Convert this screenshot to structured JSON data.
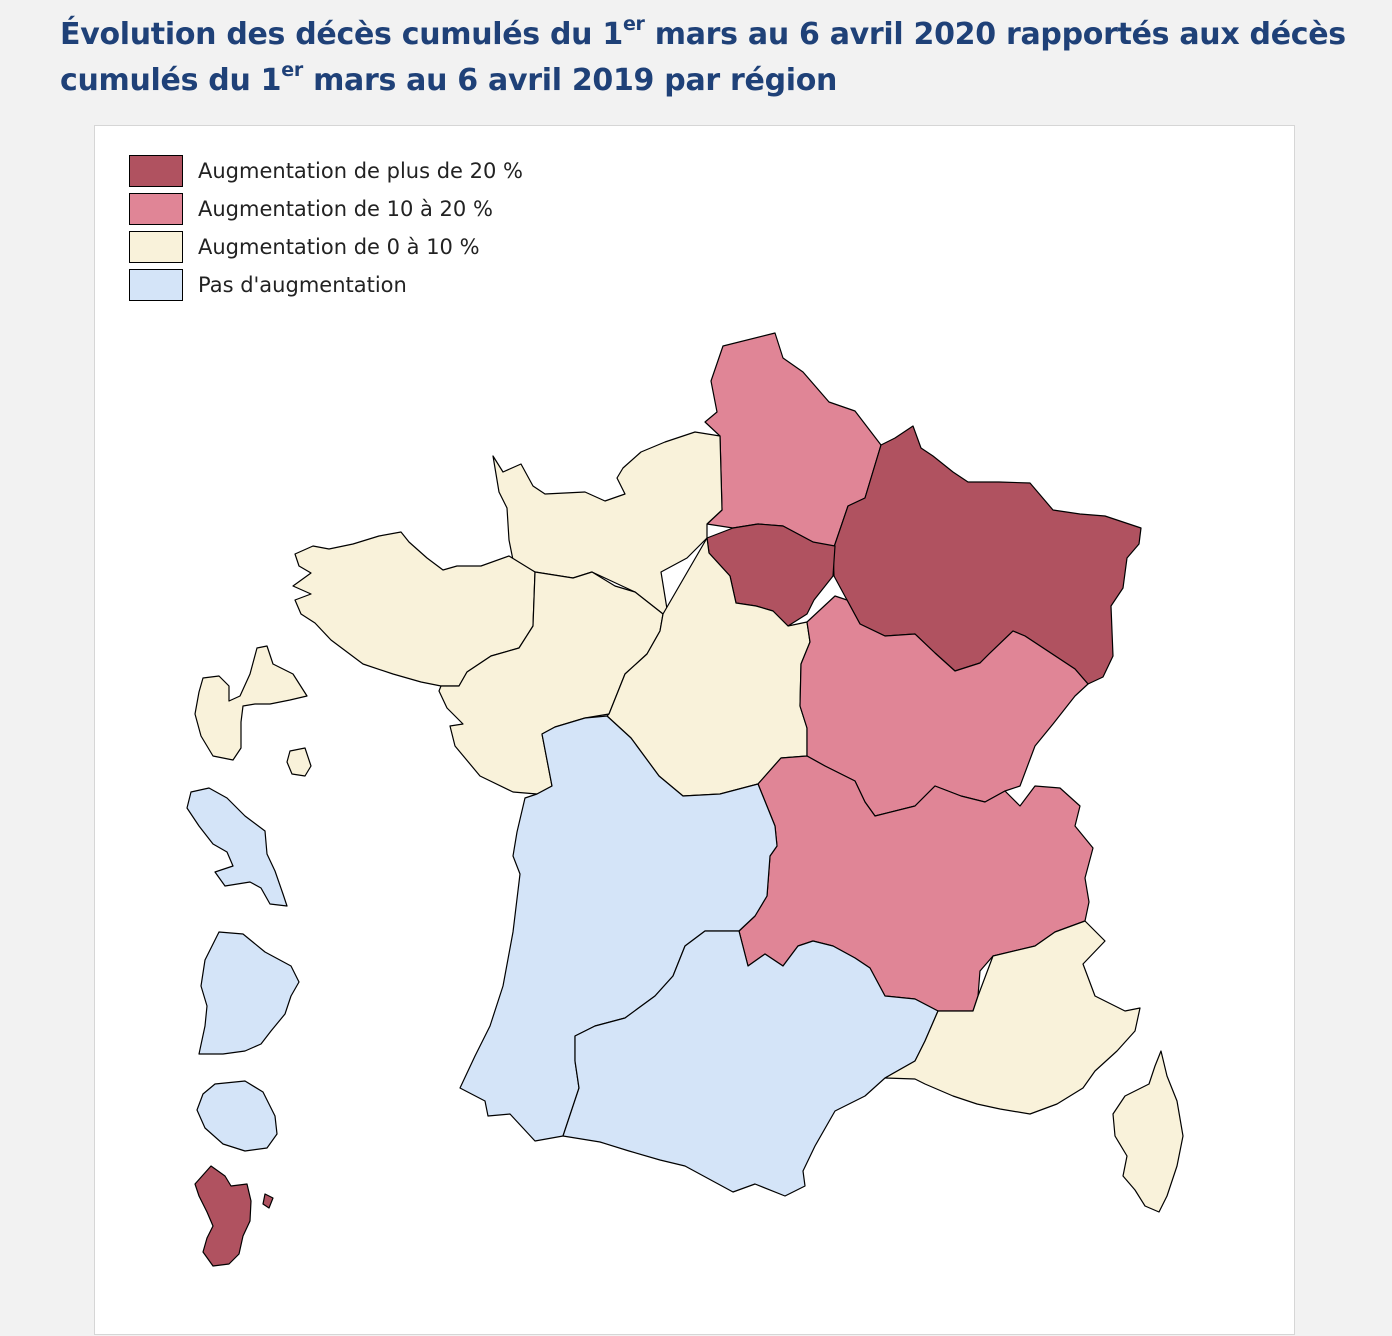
{
  "title": {
    "part1": "Évolution des décès cumulés du 1",
    "sup1": "er",
    "part2": " mars au 6 avril 2020 rapportés aux décès cumulés du 1",
    "sup2": "er",
    "part3": " mars au 6 avril 2019 par région"
  },
  "colors": {
    "over_20": "#b05260",
    "from_10_to_20": "#e08596",
    "from_0_to_10": "#f9f2da",
    "no_increase": "#d4e4f8"
  },
  "legend": [
    {
      "label": "Augmentation de plus de 20 %",
      "category": "over_20"
    },
    {
      "label": "Augmentation de 10 à 20 %",
      "category": "from_10_to_20"
    },
    {
      "label": "Augmentation de 0 à 10 %",
      "category": "from_0_to_10"
    },
    {
      "label": "Pas d'augmentation",
      "category": "no_increase"
    }
  ],
  "regions": [
    {
      "name": "Hauts-de-France",
      "category": "from_10_to_20"
    },
    {
      "name": "Grand Est",
      "category": "over_20"
    },
    {
      "name": "Île-de-France",
      "category": "over_20"
    },
    {
      "name": "Normandie",
      "category": "from_0_to_10"
    },
    {
      "name": "Bretagne",
      "category": "from_0_to_10"
    },
    {
      "name": "Pays de la Loire",
      "category": "from_0_to_10"
    },
    {
      "name": "Centre-Val de Loire",
      "category": "from_0_to_10"
    },
    {
      "name": "Bourgogne-Franche-Comté",
      "category": "from_10_to_20"
    },
    {
      "name": "Auvergne-Rhône-Alpes",
      "category": "from_10_to_20"
    },
    {
      "name": "Nouvelle-Aquitaine",
      "category": "no_increase"
    },
    {
      "name": "Occitanie",
      "category": "no_increase"
    },
    {
      "name": "Provence-Alpes-Côte d'Azur",
      "category": "from_0_to_10"
    },
    {
      "name": "Corse",
      "category": "from_0_to_10"
    },
    {
      "name": "Guadeloupe",
      "category": "from_0_to_10"
    },
    {
      "name": "Martinique",
      "category": "no_increase"
    },
    {
      "name": "Guyane",
      "category": "no_increase"
    },
    {
      "name": "La Réunion",
      "category": "no_increase"
    },
    {
      "name": "Mayotte",
      "category": "over_20"
    }
  ]
}
